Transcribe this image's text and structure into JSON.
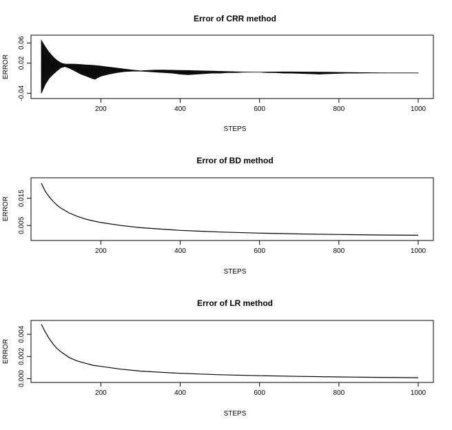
{
  "chart_data": [
    {
      "type": "line",
      "title": "Error of CRR method",
      "xlabel": "STEPS",
      "ylabel": "ERROR",
      "xlim": [
        50,
        1000
      ],
      "ylim": [
        -0.045,
        0.07
      ],
      "xticks": [
        200,
        400,
        600,
        800,
        1000
      ],
      "yticks": [
        -0.04,
        0.02,
        0.06
      ],
      "ytick_labels": [
        "-0.04",
        "0.02",
        "0.06"
      ],
      "grid": false,
      "oscillating": true,
      "series": [
        {
          "x": [
            50,
            60,
            70,
            80,
            90,
            100,
            110,
            120,
            130,
            140,
            150,
            160,
            170,
            180,
            185,
            190,
            200,
            220,
            240,
            260,
            280,
            300,
            320,
            340,
            360,
            380,
            400,
            420,
            440,
            460,
            480,
            500,
            520,
            540,
            560,
            580,
            600,
            620,
            640,
            660,
            680,
            700,
            720,
            740,
            750,
            760,
            780,
            800,
            820,
            840,
            860,
            880,
            900,
            920,
            940,
            960,
            980,
            1000
          ],
          "upper": [
            0.065,
            0.052,
            0.041,
            0.032,
            0.025,
            0.02,
            0.018,
            0.018,
            0.018,
            0.0175,
            0.017,
            0.0165,
            0.016,
            0.0155,
            0.0152,
            0.0148,
            0.014,
            0.012,
            0.01,
            0.008,
            0.006,
            0.0045,
            0.0055,
            0.006,
            0.006,
            0.0058,
            0.0055,
            0.0052,
            0.0048,
            0.0044,
            0.004,
            0.0036,
            0.0032,
            0.0028,
            0.0024,
            0.002,
            0.002,
            0.0022,
            0.0024,
            0.0025,
            0.0025,
            0.0024,
            0.0023,
            0.0022,
            0.0021,
            0.002,
            0.0018,
            0.0016,
            0.0014,
            0.0012,
            0.001,
            0.0008,
            0.0006,
            0.0005,
            0.0005,
            0.0005,
            0.0005,
            0.0004
          ],
          "lower": [
            -0.04,
            -0.022,
            -0.01,
            -0.002,
            0.005,
            0.011,
            0.013,
            0.01,
            0.006,
            0.002,
            -0.002,
            -0.005,
            -0.008,
            -0.011,
            -0.012,
            -0.01,
            -0.006,
            -0.002,
            0.001,
            0.003,
            0.004,
            0.004,
            0.003,
            0.002,
            0.001,
            0.0,
            -0.002,
            -0.003,
            -0.002,
            -0.001,
            0.0,
            0.0,
            0.001,
            0.001,
            0.002,
            0.002,
            0.002,
            0.001,
            0.001,
            0.0,
            0.0,
            -0.0005,
            -0.001,
            -0.0015,
            -0.002,
            -0.0015,
            -0.001,
            -0.0005,
            0.0,
            0.0,
            0.0002,
            0.0003,
            0.0003,
            0.0003,
            0.0003,
            0.0003,
            0.0003,
            0.0003
          ]
        }
      ]
    },
    {
      "type": "line",
      "title": "Error of BD method",
      "xlabel": "STEPS",
      "ylabel": "ERROR",
      "xlim": [
        50,
        1000
      ],
      "ylim": [
        0.0005,
        0.0215
      ],
      "xticks": [
        200,
        400,
        600,
        800,
        1000
      ],
      "yticks": [
        0.005,
        0.015
      ],
      "ytick_labels": [
        "0.005",
        "0.015"
      ],
      "grid": false,
      "series": [
        {
          "x": [
            50,
            60,
            70,
            80,
            90,
            100,
            120,
            140,
            160,
            180,
            200,
            250,
            300,
            350,
            400,
            450,
            500,
            600,
            700,
            800,
            900,
            1000
          ],
          "values": [
            0.0205,
            0.0175,
            0.0155,
            0.0138,
            0.0124,
            0.0113,
            0.0096,
            0.0084,
            0.0074,
            0.0067,
            0.0061,
            0.005,
            0.0042,
            0.0037,
            0.0032,
            0.0029,
            0.0026,
            0.0022,
            0.0019,
            0.0017,
            0.0015,
            0.0014
          ]
        }
      ]
    },
    {
      "type": "line",
      "title": "Error of LR method",
      "xlabel": "STEPS",
      "ylabel": "ERROR",
      "xlim": [
        50,
        1000
      ],
      "ylim": [
        -0.0001,
        0.005
      ],
      "xticks": [
        200,
        400,
        600,
        800,
        1000
      ],
      "yticks": [
        0.0,
        0.002,
        0.004
      ],
      "ytick_labels": [
        "0.000",
        "0.002",
        "0.004"
      ],
      "grid": false,
      "series": [
        {
          "x": [
            50,
            60,
            70,
            80,
            90,
            100,
            120,
            140,
            160,
            180,
            200,
            250,
            300,
            350,
            400,
            450,
            500,
            600,
            700,
            800,
            900,
            1000
          ],
          "values": [
            0.0049,
            0.0042,
            0.0036,
            0.0031,
            0.0027,
            0.0024,
            0.0019,
            0.0016,
            0.0014,
            0.0012,
            0.0011,
            0.00085,
            0.00068,
            0.00057,
            0.00048,
            0.00041,
            0.00035,
            0.00026,
            0.0002,
            0.00015,
            0.00011,
            8e-05
          ]
        }
      ]
    }
  ]
}
